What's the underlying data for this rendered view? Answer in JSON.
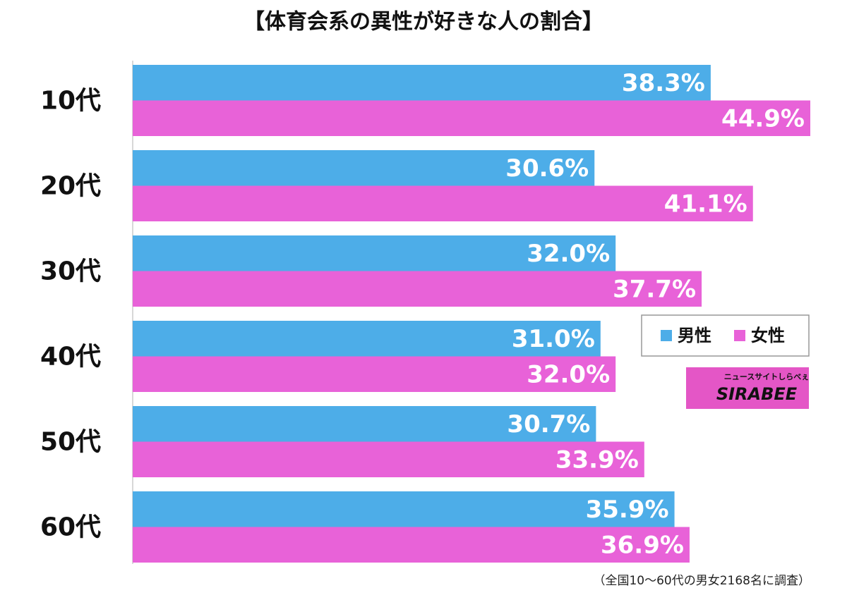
{
  "chart_data": {
    "type": "hbar",
    "title": "【体育会系の異性が好きな人の割合】",
    "categories": [
      "10代",
      "20代",
      "30代",
      "40代",
      "50代",
      "60代"
    ],
    "series": [
      {
        "name": "男性",
        "color": "#4dade8",
        "values": [
          38.3,
          30.6,
          32.0,
          31.0,
          30.7,
          35.9
        ],
        "value_labels": [
          "38.3%",
          "30.6%",
          "32.0%",
          "31.0%",
          "30.7%",
          "35.9%"
        ]
      },
      {
        "name": "女性",
        "color": "#e862d8",
        "values": [
          44.9,
          41.1,
          37.7,
          32.0,
          33.9,
          36.9
        ],
        "value_labels": [
          "44.9%",
          "41.1%",
          "37.7%",
          "32.0%",
          "33.9%",
          "36.9%"
        ]
      }
    ],
    "legend": "right",
    "note": "（全国10〜60代の男女2168名に調査）",
    "logo": {
      "text": "SIRABEE",
      "subtext": "ニュースサイトしらべぇ"
    }
  }
}
